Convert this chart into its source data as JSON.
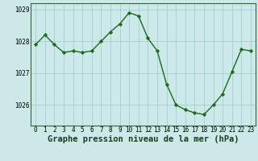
{
  "x": [
    0,
    1,
    2,
    3,
    4,
    5,
    6,
    7,
    8,
    9,
    10,
    11,
    12,
    13,
    14,
    15,
    16,
    17,
    18,
    19,
    20,
    21,
    22,
    23
  ],
  "y": [
    1027.9,
    1028.2,
    1027.9,
    1027.65,
    1027.7,
    1027.65,
    1027.7,
    1028.0,
    1028.3,
    1028.55,
    1028.9,
    1028.8,
    1028.1,
    1027.7,
    1026.65,
    1026.0,
    1025.85,
    1025.75,
    1025.7,
    1026.0,
    1026.35,
    1027.05,
    1027.75,
    1027.7
  ],
  "line_color": "#1a6b1a",
  "marker": "D",
  "marker_size": 2.2,
  "bg_color": "#cce8e8",
  "grid_color": "#99cccc",
  "title": "Graphe pression niveau de la mer (hPa)",
  "ylim": [
    1025.35,
    1029.2
  ],
  "yticks": [
    1026,
    1027,
    1028,
    1029
  ],
  "xticks": [
    0,
    1,
    2,
    3,
    4,
    5,
    6,
    7,
    8,
    9,
    10,
    11,
    12,
    13,
    14,
    15,
    16,
    17,
    18,
    19,
    20,
    21,
    22,
    23
  ],
  "tick_fontsize": 5.5,
  "title_fontsize": 7.5,
  "line_width": 1.0,
  "spine_color": "#336633"
}
